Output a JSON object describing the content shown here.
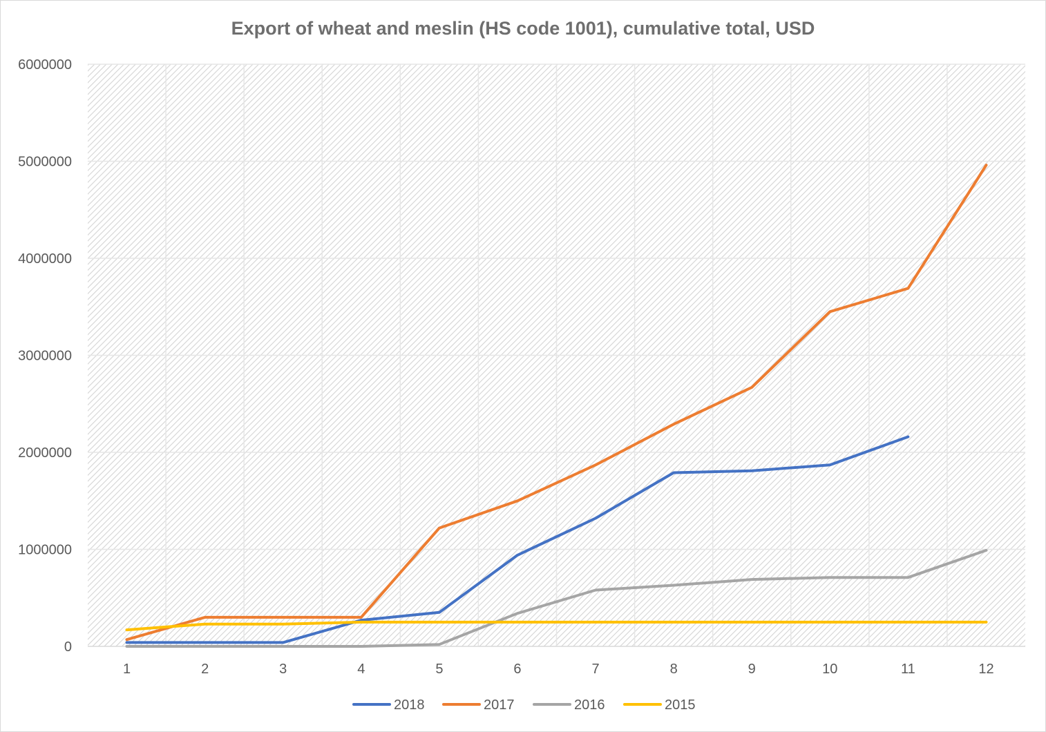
{
  "chart_data": {
    "type": "line",
    "title": "Export of wheat and meslin (HS code 1001), cumulative total, USD",
    "xlabel": "",
    "ylabel": "",
    "categories": [
      "1",
      "2",
      "3",
      "4",
      "5",
      "6",
      "7",
      "8",
      "9",
      "10",
      "11",
      "12"
    ],
    "ylim": [
      0,
      6000000
    ],
    "yticks": [
      "0",
      "1000000",
      "2000000",
      "3000000",
      "4000000",
      "5000000",
      "6000000"
    ],
    "grid": true,
    "legend_position": "bottom",
    "series": [
      {
        "name": "2018",
        "color": "#4472c4",
        "values": [
          40000,
          40000,
          40000,
          270000,
          350000,
          940000,
          1320000,
          1790000,
          1810000,
          1870000,
          2160000,
          null
        ]
      },
      {
        "name": "2017",
        "color": "#ed7d31",
        "values": [
          70000,
          300000,
          300000,
          300000,
          1220000,
          1500000,
          1870000,
          2290000,
          2670000,
          3450000,
          3690000,
          4960000
        ]
      },
      {
        "name": "2016",
        "color": "#a5a5a5",
        "values": [
          0,
          0,
          0,
          0,
          20000,
          340000,
          580000,
          630000,
          690000,
          710000,
          710000,
          990000
        ]
      },
      {
        "name": "2015",
        "color": "#ffc000",
        "values": [
          170000,
          230000,
          230000,
          250000,
          250000,
          250000,
          250000,
          250000,
          250000,
          250000,
          250000,
          250000
        ]
      }
    ]
  }
}
